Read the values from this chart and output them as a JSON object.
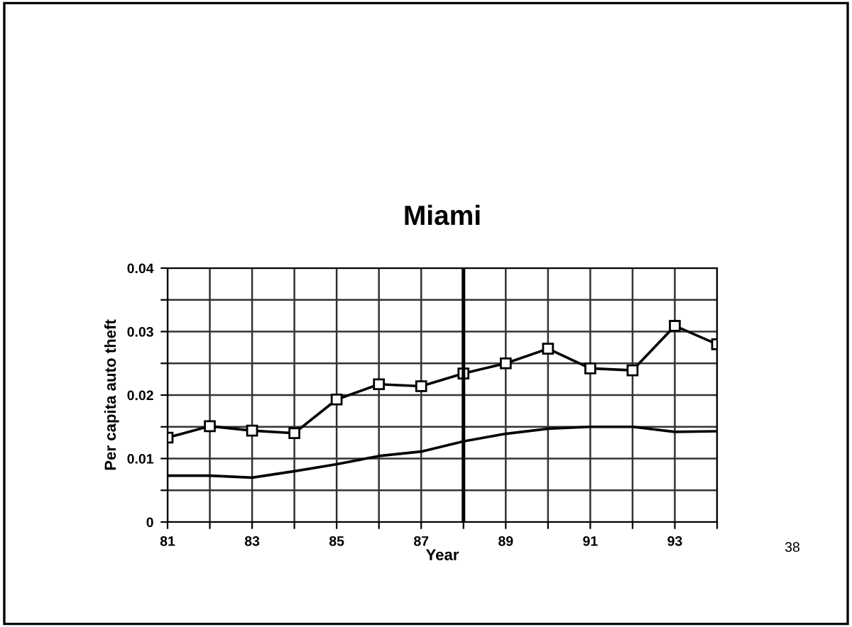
{
  "chart_data": {
    "type": "line",
    "title": "Miami",
    "xlabel": "Year",
    "ylabel": "Per capita auto theft",
    "x": [
      81,
      82,
      83,
      84,
      85,
      86,
      87,
      88,
      89,
      90,
      91,
      92,
      93,
      94
    ],
    "series": [
      {
        "color": "#000000",
        "marker": "square",
        "values": [
          0.0133,
          0.0151,
          0.0144,
          0.014,
          0.0193,
          0.0217,
          0.0214,
          0.0234,
          0.025,
          0.0273,
          0.0242,
          0.0239,
          0.0309,
          0.028
        ]
      },
      {
        "color": "#000000",
        "marker": "none",
        "values": [
          0.0073,
          0.0073,
          0.007,
          0.008,
          0.0091,
          0.0104,
          0.0111,
          0.0127,
          0.0139,
          0.0147,
          0.015,
          0.015,
          0.0142,
          0.0143
        ]
      }
    ],
    "xlim": [
      81,
      94
    ],
    "ylim": [
      0,
      0.04
    ],
    "xticks": [
      81,
      {
        "value": 82,
        "label": null
      },
      83,
      {
        "value": 84,
        "label": null
      },
      85,
      {
        "value": 86,
        "label": null
      },
      87,
      {
        "value": 88,
        "label": null
      },
      89,
      {
        "value": 90,
        "label": null
      },
      91,
      {
        "value": 92,
        "label": null
      },
      93,
      {
        "value": 94,
        "label": null
      }
    ],
    "yticks": [
      0,
      {
        "value": 0.005,
        "label": null
      },
      0.01,
      {
        "value": 0.015,
        "label": null
      },
      0.02,
      {
        "value": 0.025,
        "label": null
      },
      0.03,
      {
        "value": 0.035,
        "label": null
      },
      0.04
    ],
    "ref_lines": [
      {
        "axis": "x",
        "value": 88,
        "color": "#000000"
      }
    ],
    "grid": true,
    "legend": false,
    "line_style": "solid",
    "annotations": [
      "38"
    ]
  }
}
